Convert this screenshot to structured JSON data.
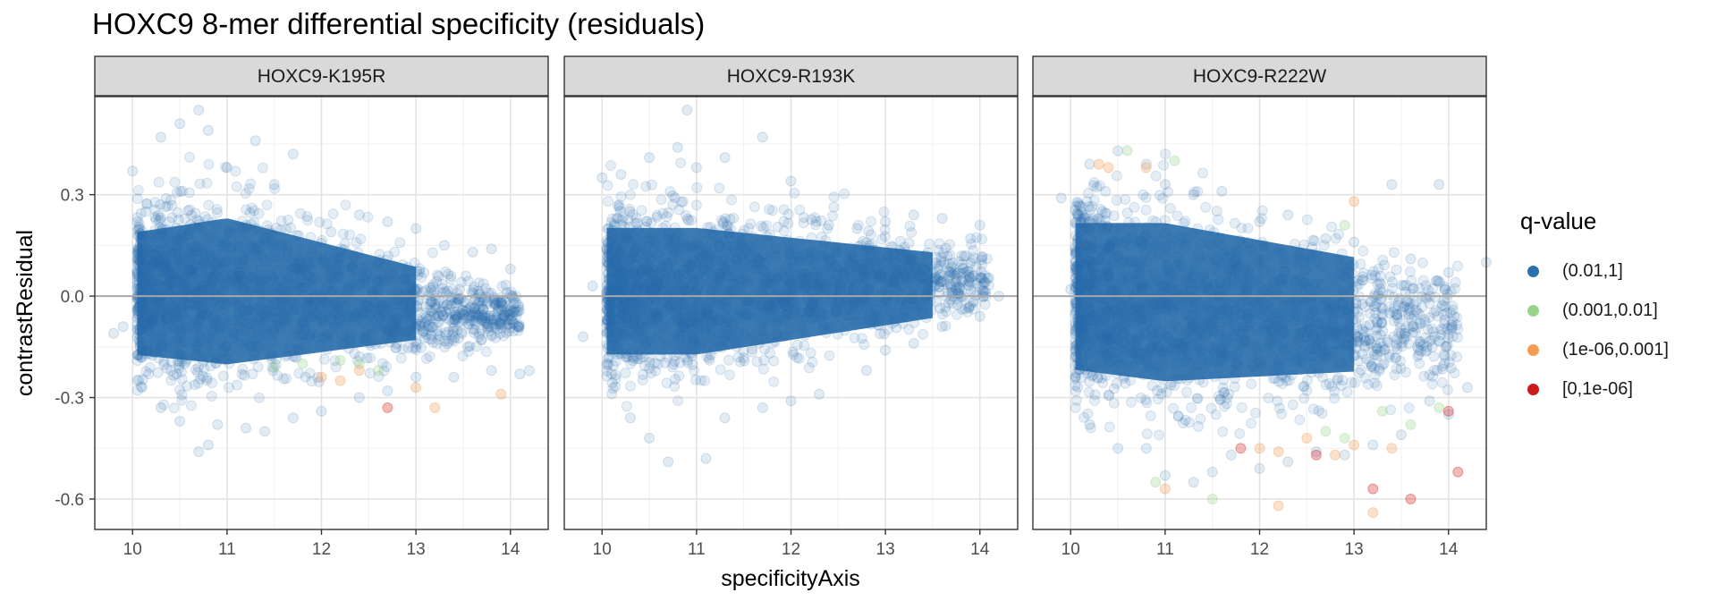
{
  "chart_data": {
    "type": "scatter",
    "title": "HOXC9 8-mer differential specificity (residuals)",
    "xlabel": "specificityAxis",
    "ylabel": "contrastResidual",
    "xlim": [
      9.6,
      14.4
    ],
    "ylim": [
      -0.69,
      0.59
    ],
    "x_ticks": [
      10,
      11,
      12,
      13,
      14
    ],
    "y_ticks": [
      -0.6,
      -0.3,
      0.0,
      0.3
    ],
    "y_tick_labels": [
      "-0.6",
      "-0.3",
      "0.0",
      "0.3"
    ],
    "reference_line_y": 0,
    "grid": true,
    "legend": {
      "title": "q-value",
      "position": "right",
      "entries": [
        {
          "label": "(0.01,1]",
          "color": "#2b6fad"
        },
        {
          "label": "(0.001,0.01]",
          "color": "#98d58b"
        },
        {
          "label": "(1e-06,0.001]",
          "color": "#f39c53"
        },
        {
          "label": "[0,1e-06]",
          "color": "#cc1a1a"
        }
      ]
    },
    "panels": [
      {
        "label": "HOXC9-K195R",
        "series": [
          {
            "name": "(0.01,1]",
            "points": [
              [
                9.8,
                -0.11
              ],
              [
                9.9,
                -0.09
              ],
              [
                10.0,
                0.37
              ],
              [
                10.3,
                0.47
              ],
              [
                10.5,
                0.51
              ],
              [
                10.7,
                0.55
              ],
              [
                10.8,
                0.49
              ],
              [
                11.0,
                0.38
              ],
              [
                11.3,
                0.46
              ],
              [
                11.5,
                0.33
              ],
              [
                11.7,
                0.42
              ],
              [
                12.1,
                0.19
              ],
              [
                12.4,
                0.24
              ],
              [
                12.7,
                0.22
              ],
              [
                13.0,
                0.2
              ],
              [
                13.3,
                0.15
              ],
              [
                13.6,
                0.13
              ],
              [
                13.8,
                0.14
              ],
              [
                14.0,
                0.08
              ],
              [
                14.2,
                -0.22
              ],
              [
                14.1,
                -0.23
              ],
              [
                13.8,
                -0.22
              ],
              [
                13.4,
                -0.24
              ],
              [
                13.0,
                -0.24
              ],
              [
                12.7,
                -0.28
              ],
              [
                12.4,
                -0.3
              ],
              [
                12.0,
                -0.34
              ],
              [
                11.7,
                -0.36
              ],
              [
                11.4,
                -0.4
              ],
              [
                11.2,
                -0.39
              ],
              [
                10.9,
                -0.38
              ],
              [
                10.8,
                -0.44
              ],
              [
                10.7,
                -0.46
              ],
              [
                10.5,
                -0.37
              ],
              [
                10.3,
                -0.33
              ],
              [
                10.1,
                -0.27
              ]
            ]
          },
          {
            "name": "(0.001,0.01]",
            "points": [
              [
                11.5,
                -0.21
              ],
              [
                11.8,
                -0.2
              ],
              [
                12.2,
                -0.19
              ],
              [
                12.4,
                -0.2
              ],
              [
                12.6,
                -0.22
              ]
            ]
          },
          {
            "name": "(1e-06,0.001]",
            "points": [
              [
                12.0,
                -0.24
              ],
              [
                12.2,
                -0.25
              ],
              [
                12.4,
                -0.22
              ],
              [
                13.0,
                -0.27
              ],
              [
                13.2,
                -0.33
              ],
              [
                13.9,
                -0.29
              ]
            ]
          },
          {
            "name": "[0,1e-06]",
            "points": [
              [
                12.7,
                -0.33
              ]
            ]
          }
        ]
      },
      {
        "label": "HOXC9-R193K",
        "series": [
          {
            "name": "(0.01,1]",
            "points": [
              [
                9.8,
                -0.12
              ],
              [
                9.9,
                0.03
              ],
              [
                10.0,
                0.35
              ],
              [
                10.2,
                0.36
              ],
              [
                10.5,
                0.41
              ],
              [
                10.8,
                0.44
              ],
              [
                10.9,
                0.55
              ],
              [
                11.0,
                0.38
              ],
              [
                11.3,
                0.41
              ],
              [
                11.7,
                0.47
              ],
              [
                12.0,
                0.34
              ],
              [
                12.4,
                0.21
              ],
              [
                12.7,
                0.2
              ],
              [
                13.0,
                0.22
              ],
              [
                13.3,
                0.24
              ],
              [
                13.6,
                0.23
              ],
              [
                13.9,
                0.17
              ],
              [
                14.0,
                0.21
              ],
              [
                14.2,
                0.0
              ],
              [
                14.0,
                -0.06
              ],
              [
                13.6,
                -0.09
              ],
              [
                13.3,
                -0.14
              ],
              [
                13.0,
                -0.16
              ],
              [
                12.8,
                -0.22
              ],
              [
                12.3,
                -0.29
              ],
              [
                12.0,
                -0.31
              ],
              [
                11.7,
                -0.33
              ],
              [
                11.3,
                -0.36
              ],
              [
                11.1,
                -0.48
              ],
              [
                10.7,
                -0.49
              ],
              [
                10.5,
                -0.42
              ],
              [
                10.3,
                -0.36
              ],
              [
                10.1,
                -0.23
              ]
            ]
          }
        ]
      },
      {
        "label": "HOXC9-R222W",
        "series": [
          {
            "name": "(0.01,1]",
            "points": [
              [
                9.9,
                0.29
              ],
              [
                10.0,
                0.02
              ],
              [
                10.1,
                -0.11
              ],
              [
                10.2,
                0.39
              ],
              [
                10.5,
                0.43
              ],
              [
                10.8,
                0.39
              ],
              [
                11.0,
                0.33
              ],
              [
                11.3,
                0.3
              ],
              [
                11.6,
                0.31
              ],
              [
                12.0,
                0.22
              ],
              [
                12.3,
                0.24
              ],
              [
                12.7,
                0.17
              ],
              [
                13.0,
                0.16
              ],
              [
                13.4,
                0.33
              ],
              [
                13.6,
                0.11
              ],
              [
                13.9,
                0.33
              ],
              [
                14.0,
                0.07
              ],
              [
                14.4,
                0.1
              ],
              [
                14.2,
                -0.27
              ],
              [
                14.0,
                -0.35
              ],
              [
                13.8,
                -0.31
              ],
              [
                13.5,
                -0.41
              ],
              [
                13.2,
                -0.44
              ],
              [
                12.9,
                -0.47
              ],
              [
                12.6,
                -0.46
              ],
              [
                12.3,
                -0.49
              ],
              [
                12.0,
                -0.51
              ],
              [
                11.7,
                -0.47
              ],
              [
                11.5,
                -0.52
              ],
              [
                11.3,
                -0.55
              ],
              [
                11.0,
                -0.53
              ],
              [
                10.8,
                -0.45
              ],
              [
                10.5,
                -0.45
              ],
              [
                10.2,
                -0.38
              ]
            ]
          },
          {
            "name": "(0.001,0.01]",
            "points": [
              [
                10.6,
                0.43
              ],
              [
                11.1,
                0.4
              ],
              [
                12.9,
                0.21
              ],
              [
                12.7,
                -0.4
              ],
              [
                12.9,
                -0.42
              ],
              [
                13.3,
                -0.34
              ],
              [
                13.6,
                -0.38
              ],
              [
                13.9,
                -0.33
              ],
              [
                10.9,
                -0.55
              ],
              [
                11.5,
                -0.6
              ]
            ]
          },
          {
            "name": "(1e-06,0.001]",
            "points": [
              [
                10.3,
                0.39
              ],
              [
                10.4,
                0.38
              ],
              [
                10.8,
                0.38
              ],
              [
                13.0,
                0.28
              ],
              [
                12.0,
                -0.45
              ],
              [
                12.2,
                -0.46
              ],
              [
                12.5,
                -0.42
              ],
              [
                12.8,
                -0.47
              ],
              [
                13.0,
                -0.44
              ],
              [
                13.4,
                -0.45
              ],
              [
                11.0,
                -0.57
              ],
              [
                12.2,
                -0.62
              ],
              [
                13.2,
                -0.64
              ]
            ]
          },
          {
            "name": "[0,1e-06]",
            "points": [
              [
                11.8,
                -0.45
              ],
              [
                12.6,
                -0.47
              ],
              [
                13.2,
                -0.57
              ],
              [
                13.6,
                -0.6
              ],
              [
                14.0,
                -0.34
              ],
              [
                14.1,
                -0.52
              ]
            ]
          }
        ]
      }
    ]
  }
}
